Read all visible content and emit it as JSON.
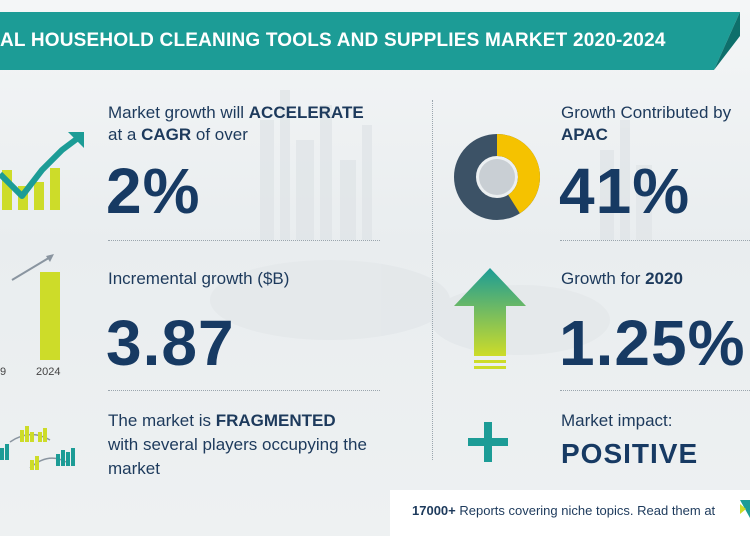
{
  "header": {
    "title": "AL HOUSEHOLD CLEANING TOOLS AND SUPPLIES MARKET 2020-2024"
  },
  "left": {
    "cagr": {
      "line1_prefix": "Market growth will",
      "line1_emphasis": "ACCELERATE",
      "line2_prefix": "at a",
      "line2_emphasis": "CAGR",
      "line2_suffix": "of over",
      "value": "2%"
    },
    "incremental": {
      "label": "Incremental growth ($B)",
      "value": "3.87",
      "tick_left": "9",
      "tick_right": "2024"
    },
    "fragmented": {
      "line1_prefix": "The market is",
      "line1_emphasis": "FRAGMENTED",
      "line2": "with several players occupying the",
      "line3": "market"
    }
  },
  "right": {
    "apac": {
      "label": "Growth Contributed by",
      "region": "APAC",
      "value": "41%",
      "share": 0.41
    },
    "growth2020": {
      "label_prefix": "Growth for",
      "label_year": "2020",
      "value": "1.25%"
    },
    "impact": {
      "label": "Market impact:",
      "value": "POSITIVE"
    }
  },
  "footer": {
    "count": "17000+",
    "text": "Reports covering niche topics. Read them at"
  },
  "colors": {
    "banner": "#1c9c96",
    "navy": "#173a63",
    "yellow": "#cddc29",
    "gold": "#f5c200",
    "green": "#2bb08d",
    "slate": "#3c5266"
  }
}
